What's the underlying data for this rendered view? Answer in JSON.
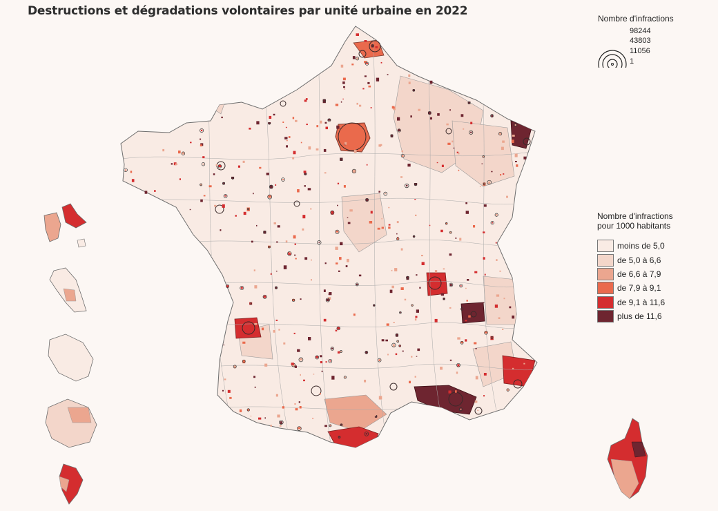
{
  "title": "Destructions et dégradations volontaires par unité urbaine en 2022",
  "size_legend": {
    "title": "Nombre d'infractions",
    "values": [
      "98244",
      "43803",
      "11056",
      "1"
    ]
  },
  "color_legend": {
    "title_line1": "Nombre d'infractions",
    "title_line2": "pour 1000 habitants",
    "classes": [
      {
        "label": "moins de 5,0",
        "color": "#f9ebe4"
      },
      {
        "label": "de 5,0 à 6,6",
        "color": "#f3d6ca"
      },
      {
        "label": "de 6,6 à 7,9",
        "color": "#eba68f"
      },
      {
        "label": "de 7,9 à 9,1",
        "color": "#ea6a4d"
      },
      {
        "label": "de 9,1 à 11,6",
        "color": "#d42d2f"
      },
      {
        "label": "plus de 11,6",
        "color": "#6e2530"
      }
    ]
  },
  "colors": {
    "background": "#fcf7f4",
    "border": "#8a8a8a"
  }
}
